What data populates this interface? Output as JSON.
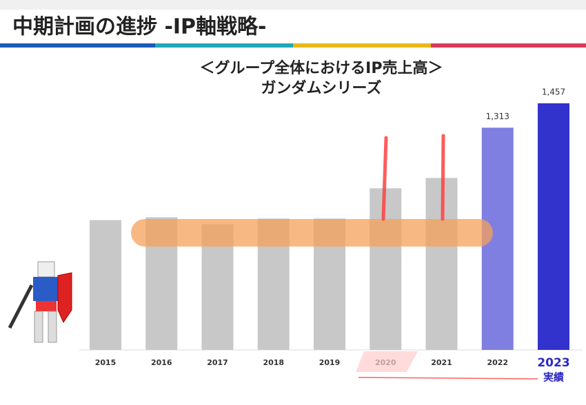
{
  "header": {
    "title": "中期計画の進捗 -IP軸戦略-"
  },
  "chart_data": {
    "type": "bar",
    "title": "＜グループ全体におけるIP売上高＞",
    "subtitle": "ガンダムシリーズ",
    "categories": [
      "2015",
      "2016",
      "2017",
      "2018",
      "2019",
      "2020",
      "2021",
      "2022",
      "2023"
    ],
    "values": [
      767,
      784,
      743,
      776,
      776,
      955,
      1016,
      1313,
      1457
    ],
    "value_labels": [
      null,
      null,
      null,
      null,
      null,
      null,
      null,
      "1,313",
      "1,457"
    ],
    "colors": [
      "#c8c8c8",
      "#c8c8c8",
      "#c8c8c8",
      "#c8c8c8",
      "#c8c8c8",
      "#c8c8c8",
      "#c8c8c8",
      "#7f7fe2",
      "#3232cc"
    ],
    "annotation": "実績"
  }
}
